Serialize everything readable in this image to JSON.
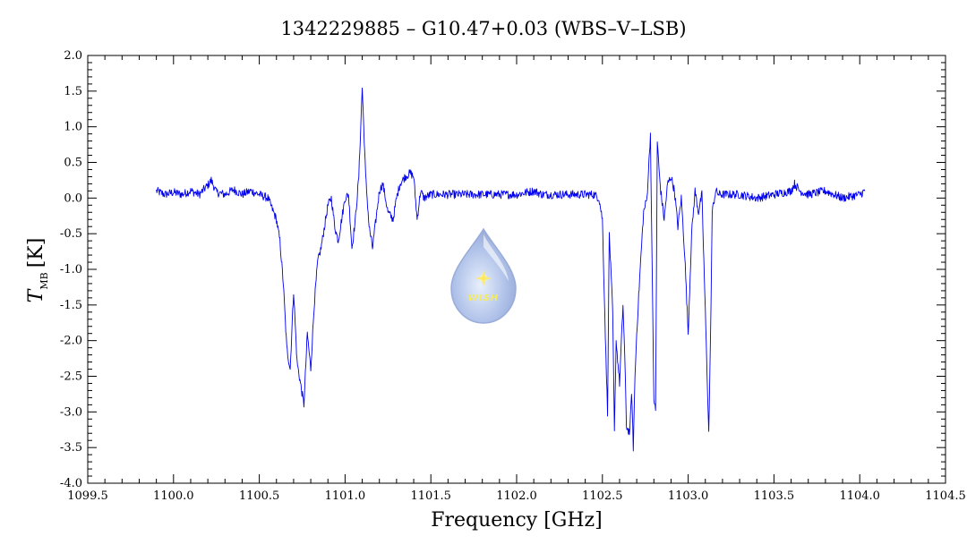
{
  "chart_data": {
    "type": "line",
    "title": "1342229885 – G10.47+0.03 (WBS–V–LSB)",
    "xlabel": "Frequency [GHz]",
    "ylabel_main": "T",
    "ylabel_sub": "MB",
    "ylabel_unit": "[K]",
    "xlim": [
      1099.5,
      1104.5
    ],
    "ylim": [
      -4.0,
      2.0
    ],
    "xticks": [
      "1099.5",
      "1100.0",
      "1100.5",
      "1101.0",
      "1101.5",
      "1102.0",
      "1102.5",
      "1103.0",
      "1103.5",
      "1104.0",
      "1104.5"
    ],
    "yticks": [
      "2.0",
      "1.5",
      "1.0",
      "0.5",
      "0.0",
      "-0.5",
      "-1.0",
      "-1.5",
      "-2.0",
      "-2.5",
      "-3.0",
      "-3.5",
      "-4.0"
    ],
    "grid": false,
    "logo_text": "WISH",
    "series": [
      {
        "color": "#0000ee",
        "x": [
          1099.9,
          1099.95,
          1100.0,
          1100.05,
          1100.1,
          1100.15,
          1100.2,
          1100.22,
          1100.25,
          1100.3,
          1100.35,
          1100.4,
          1100.45,
          1100.5,
          1100.55,
          1100.6,
          1100.62,
          1100.64,
          1100.66,
          1100.68,
          1100.7,
          1100.72,
          1100.74,
          1100.76,
          1100.78,
          1100.8,
          1100.82,
          1100.84,
          1100.86,
          1100.88,
          1100.9,
          1100.92,
          1100.94,
          1100.96,
          1100.98,
          1101.0,
          1101.02,
          1101.04,
          1101.06,
          1101.08,
          1101.1,
          1101.12,
          1101.14,
          1101.16,
          1101.18,
          1101.2,
          1101.22,
          1101.25,
          1101.28,
          1101.3,
          1101.32,
          1101.35,
          1101.38,
          1101.4,
          1101.42,
          1101.44,
          1101.46,
          1101.5,
          1101.6,
          1101.7,
          1101.8,
          1101.9,
          1102.0,
          1102.1,
          1102.15,
          1102.2,
          1102.3,
          1102.4,
          1102.45,
          1102.48,
          1102.5,
          1102.52,
          1102.53,
          1102.54,
          1102.56,
          1102.57,
          1102.58,
          1102.6,
          1102.62,
          1102.63,
          1102.64,
          1102.66,
          1102.67,
          1102.68,
          1102.69,
          1102.7,
          1102.72,
          1102.74,
          1102.76,
          1102.78,
          1102.79,
          1102.8,
          1102.81,
          1102.82,
          1102.83,
          1102.84,
          1102.86,
          1102.88,
          1102.9,
          1102.92,
          1102.94,
          1102.96,
          1102.98,
          1103.0,
          1103.02,
          1103.04,
          1103.06,
          1103.08,
          1103.1,
          1103.12,
          1103.13,
          1103.14,
          1103.16,
          1103.18,
          1103.2,
          1103.3,
          1103.4,
          1103.5,
          1103.6,
          1103.62,
          1103.65,
          1103.7,
          1103.8,
          1103.9,
          1104.0,
          1104.03
        ],
        "y": [
          0.1,
          0.05,
          0.08,
          0.05,
          0.1,
          0.05,
          0.18,
          0.25,
          0.08,
          0.05,
          0.12,
          0.05,
          0.1,
          0.05,
          0.0,
          -0.3,
          -0.6,
          -1.2,
          -2.1,
          -2.4,
          -1.3,
          -2.3,
          -2.6,
          -2.9,
          -1.9,
          -2.4,
          -1.5,
          -0.9,
          -0.7,
          -0.4,
          -0.1,
          0.0,
          -0.4,
          -0.6,
          -0.3,
          0.0,
          0.05,
          -0.7,
          -0.3,
          0.3,
          1.55,
          0.3,
          -0.4,
          -0.7,
          -0.3,
          0.1,
          0.2,
          -0.2,
          -0.3,
          0.0,
          0.2,
          0.3,
          0.35,
          0.3,
          -0.3,
          0.1,
          0.0,
          0.05,
          0.05,
          0.05,
          0.05,
          0.05,
          0.05,
          0.1,
          0.05,
          0.05,
          0.05,
          0.05,
          0.05,
          0.0,
          -0.3,
          -2.2,
          -3.0,
          -0.5,
          -1.6,
          -3.3,
          -2.0,
          -2.6,
          -1.5,
          -2.2,
          -3.2,
          -3.3,
          -2.7,
          -3.5,
          -2.5,
          -1.9,
          -1.0,
          -0.2,
          0.0,
          0.9,
          -1.0,
          -2.8,
          -3.0,
          0.8,
          0.4,
          0.1,
          -0.3,
          0.2,
          0.3,
          0.1,
          -0.4,
          0.0,
          -0.8,
          -1.9,
          -0.5,
          0.1,
          -0.2,
          0.05,
          -1.6,
          -3.3,
          -2.0,
          -0.2,
          0.1,
          0.05,
          0.05,
          0.05,
          0.0,
          0.05,
          0.1,
          0.2,
          0.1,
          0.05,
          0.1,
          0.0,
          0.05,
          0.1
        ]
      }
    ]
  }
}
